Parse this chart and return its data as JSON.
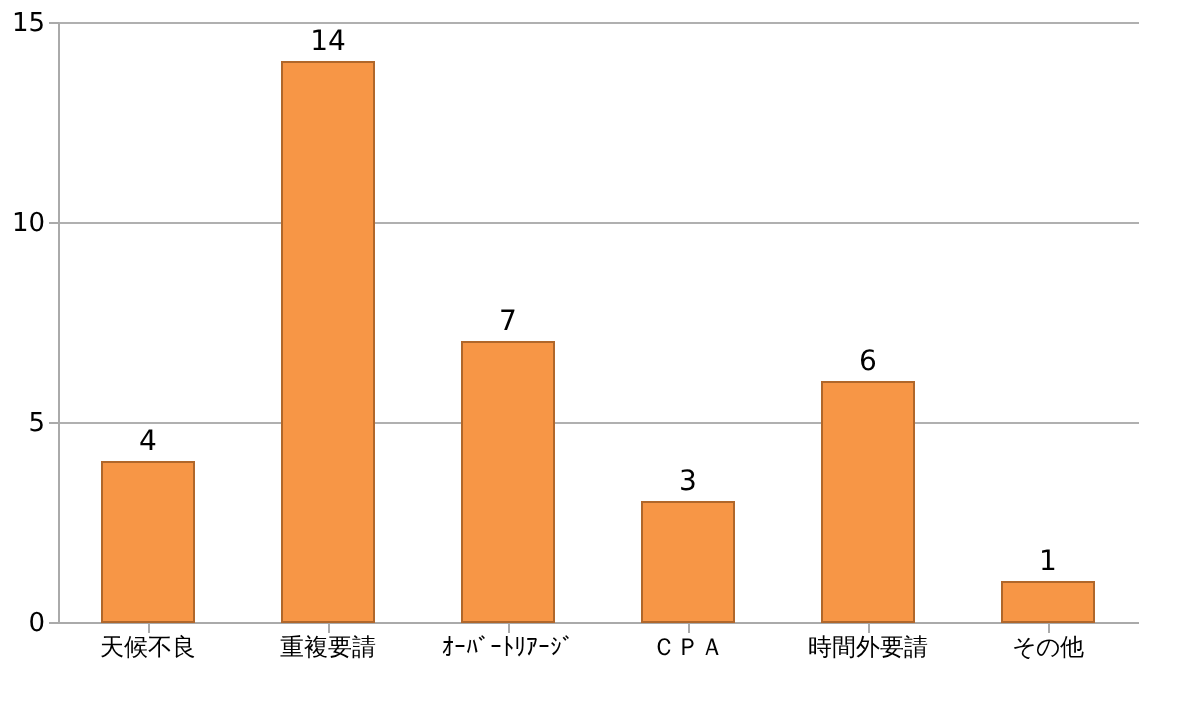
{
  "chart_data": {
    "type": "bar",
    "categories": [
      "天候不良",
      "重複要請",
      "ｵｰﾊﾞｰﾄﾘｱｰｼﾞ",
      "ＣＰＡ",
      "時間外要請",
      "その他"
    ],
    "values": [
      4,
      14,
      7,
      3,
      6,
      1
    ],
    "color": "#f79646",
    "ylim": [
      0,
      15
    ],
    "yticks": [
      0,
      5,
      10,
      15
    ],
    "grid": "y",
    "data_labels": true
  }
}
